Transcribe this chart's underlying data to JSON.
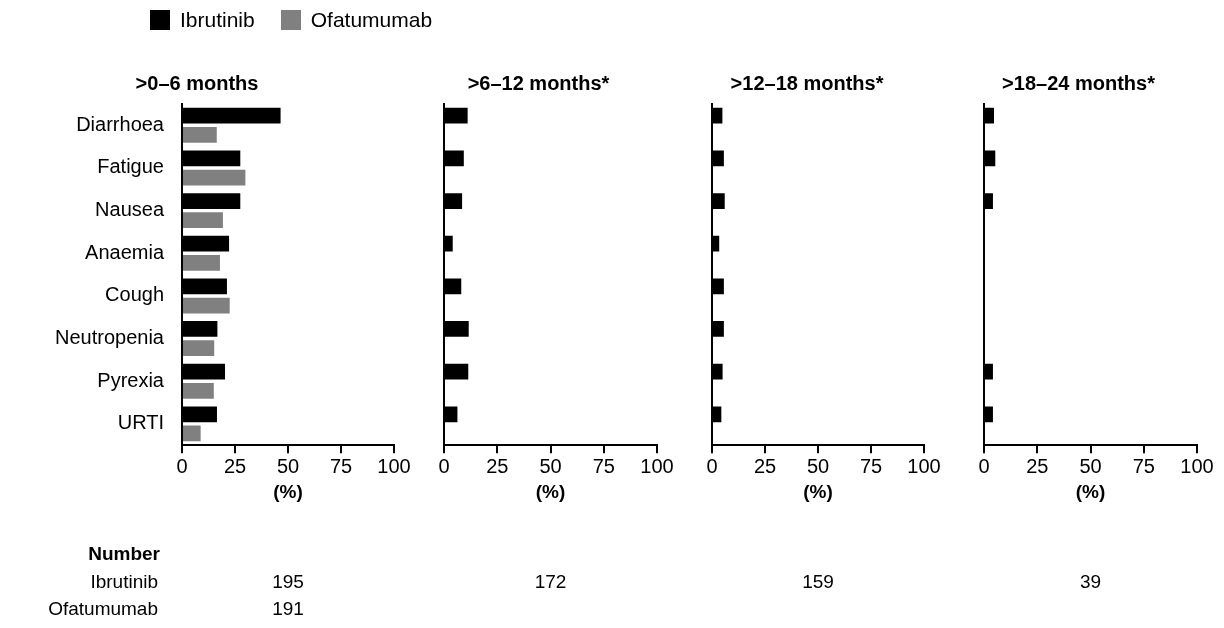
{
  "chart_data": [
    {
      "type": "bar",
      "orientation": "horizontal",
      "title": ">0–6 months",
      "xlabel": "(%)",
      "categories": [
        "Diarrhoea",
        "Fatigue",
        "Nausea",
        "Anaemia",
        "Cough",
        "Neutropenia",
        "Pyrexia",
        "URTI"
      ],
      "series": [
        {
          "name": "Ibrutinib",
          "color": "#000000",
          "values": [
            46.5,
            27.5,
            27.5,
            22.2,
            21.2,
            16.7,
            20.3,
            16.5
          ]
        },
        {
          "name": "Ofatumumab",
          "color": "#808080",
          "values": [
            16.4,
            29.9,
            19.3,
            17.9,
            22.5,
            15.2,
            15.0,
            8.8
          ]
        }
      ],
      "xlim": [
        0,
        100
      ],
      "xticks": [
        0,
        25,
        50,
        75,
        100
      ],
      "legend": "top left",
      "annotations": [
        "Number",
        "Ibrutinib",
        "Ofatumumab",
        "195",
        "191"
      ]
    },
    {
      "type": "bar",
      "orientation": "horizontal",
      "title": ">6–12 months*",
      "xlabel": "(%)",
      "categories": [
        null,
        null,
        null,
        null,
        null,
        null,
        null,
        null
      ],
      "series": [
        {
          "color": "#000000",
          "values": [
            11.1,
            9.3,
            8.5,
            4.1,
            8.1,
            11.6,
            11.4,
            6.3
          ]
        },
        {
          "color": "#808080",
          "values": [
            null,
            null,
            null,
            null,
            null,
            null,
            null,
            null
          ]
        }
      ],
      "xlim": [
        0,
        100
      ],
      "xticks": [
        0,
        25,
        50,
        75,
        100
      ],
      "tick_labels": "x",
      "annotations": [
        "172"
      ]
    },
    {
      "type": "bar",
      "orientation": "horizontal",
      "title": ">12–18 months*",
      "xlabel": "(%)",
      "categories": [
        null,
        null,
        null,
        null,
        null,
        null,
        null,
        null
      ],
      "series": [
        {
          "color": "#000000",
          "values": [
            4.9,
            5.6,
            6.0,
            3.4,
            5.6,
            5.6,
            5.0,
            4.4
          ]
        },
        {
          "color": "#808080",
          "values": [
            null,
            null,
            null,
            null,
            null,
            null,
            null,
            null
          ]
        }
      ],
      "xlim": [
        0,
        100
      ],
      "xticks": [
        0,
        25,
        50,
        75,
        100
      ],
      "tick_labels": "x",
      "annotations": [
        "159"
      ]
    },
    {
      "type": "bar",
      "orientation": "horizontal",
      "title": ">18–24 months*",
      "xlabel": "(%)",
      "categories": [
        null,
        null,
        null,
        null,
        null,
        null,
        null,
        null
      ],
      "series": [
        {
          "color": "#000000",
          "values": [
            4.7,
            5.3,
            4.2,
            null,
            null,
            null,
            4.2,
            4.2
          ]
        },
        {
          "color": "#808080",
          "values": [
            null,
            null,
            null,
            null,
            null,
            null,
            null,
            null
          ]
        }
      ],
      "xlim": [
        0,
        100
      ],
      "xticks": [
        0,
        25,
        50,
        75,
        100
      ],
      "tick_labels": "x",
      "annotations": [
        "39"
      ]
    }
  ]
}
